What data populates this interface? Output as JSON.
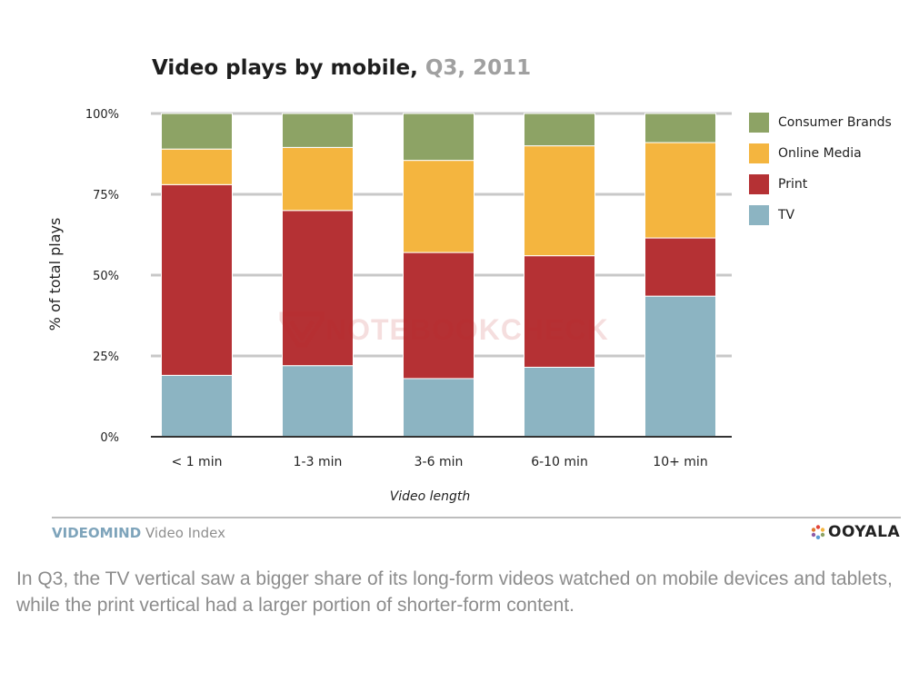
{
  "chart_data": {
    "type": "bar",
    "stacked": true,
    "title": "Video plays by mobile,",
    "subtitle": "Q3, 2011",
    "xlabel": "Video length",
    "ylabel": "% of total plays",
    "ylim": [
      0,
      100
    ],
    "yticks": [
      "0%",
      "25%",
      "50%",
      "75%",
      "100%"
    ],
    "ytick_values": [
      0,
      25,
      50,
      75,
      100
    ],
    "grid": true,
    "legend_position": "right",
    "categories": [
      "< 1 min",
      "1-3 min",
      "3-6 min",
      "6-10 min",
      "10+ min"
    ],
    "series": [
      {
        "name": "TV",
        "color": "#8cb4c2",
        "values": [
          19,
          22,
          18,
          21.5,
          43.5
        ]
      },
      {
        "name": "Print",
        "color": "#b53134",
        "values": [
          59,
          48,
          39,
          34.5,
          18
        ]
      },
      {
        "name": "Online Media",
        "color": "#f4b53f",
        "values": [
          11,
          19.5,
          28.5,
          34,
          29.5
        ]
      },
      {
        "name": "Consumer Brands",
        "color": "#8da365",
        "values": [
          11,
          10.5,
          14.5,
          10,
          9
        ]
      }
    ],
    "legend_order": [
      "Consumer Brands",
      "Online Media",
      "Print",
      "TV"
    ]
  },
  "footer": {
    "brand": "VIDEOMIND",
    "index_label": "Video Index",
    "logo_text": "OOYALA"
  },
  "watermark": {
    "text": "NOTEBOOKCHECK"
  },
  "caption": "In Q3, the TV vertical saw a bigger share of its long-form videos watched on mobile devices and tablets, while the print vertical had a larger portion of shorter-form content.",
  "colors": {
    "gridline": "#c8c8c8",
    "axis": "#333333",
    "tick_label": "#222222"
  },
  "icons": {
    "logo_dots": "ooyala-dots-icon",
    "watermark_mark": "notebookcheck-logo-icon"
  }
}
